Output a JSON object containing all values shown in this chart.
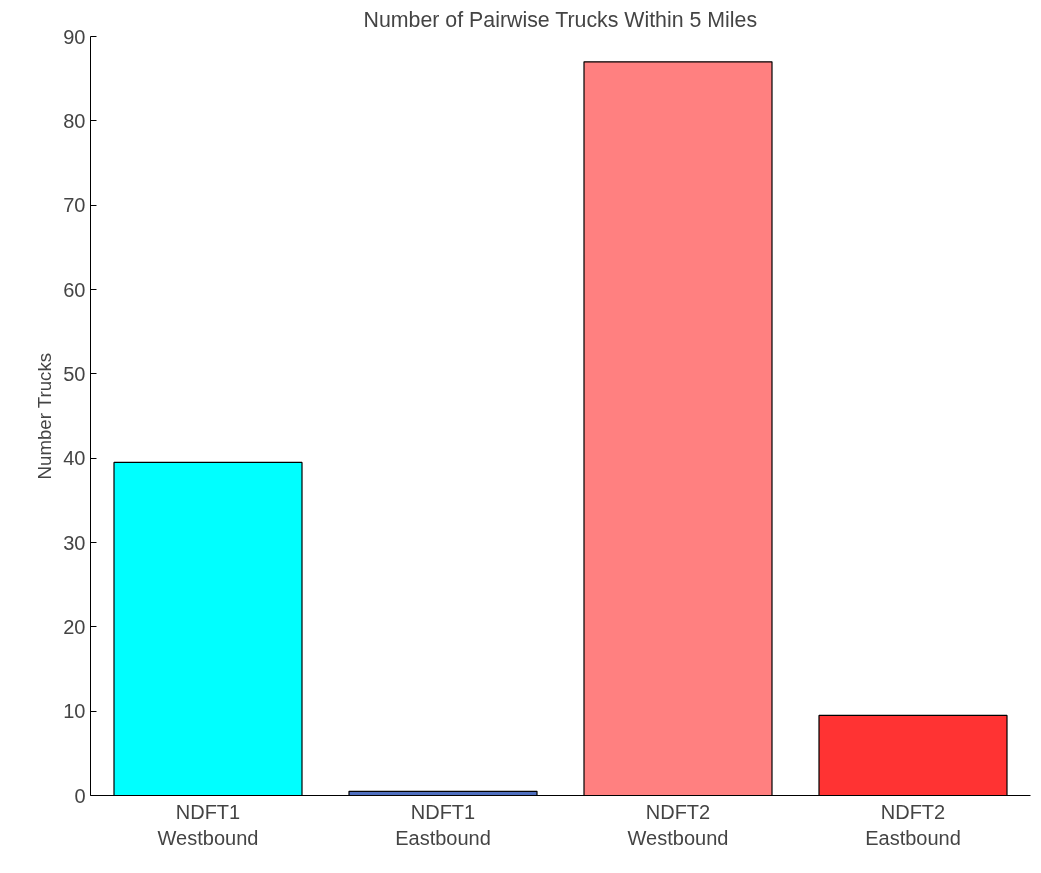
{
  "chart_data": {
    "type": "bar",
    "title": "Number of Pairwise Trucks Within 5 Miles",
    "ylabel": "Number Trucks",
    "categories": [
      "NDFT1\nWestbound",
      "NDFT1\nEastbound",
      "NDFT2\nWestbound",
      "NDFT2\nEastbound"
    ],
    "values": [
      39.5,
      0.5,
      87,
      9.5
    ],
    "colors": [
      "#00ffff",
      "#4f6fbf",
      "#ff8080",
      "#ff3333"
    ],
    "ylim": [
      0,
      90
    ],
    "yticks": [
      0,
      10,
      20,
      30,
      40,
      50,
      60,
      70,
      80,
      90
    ],
    "grid": false
  }
}
